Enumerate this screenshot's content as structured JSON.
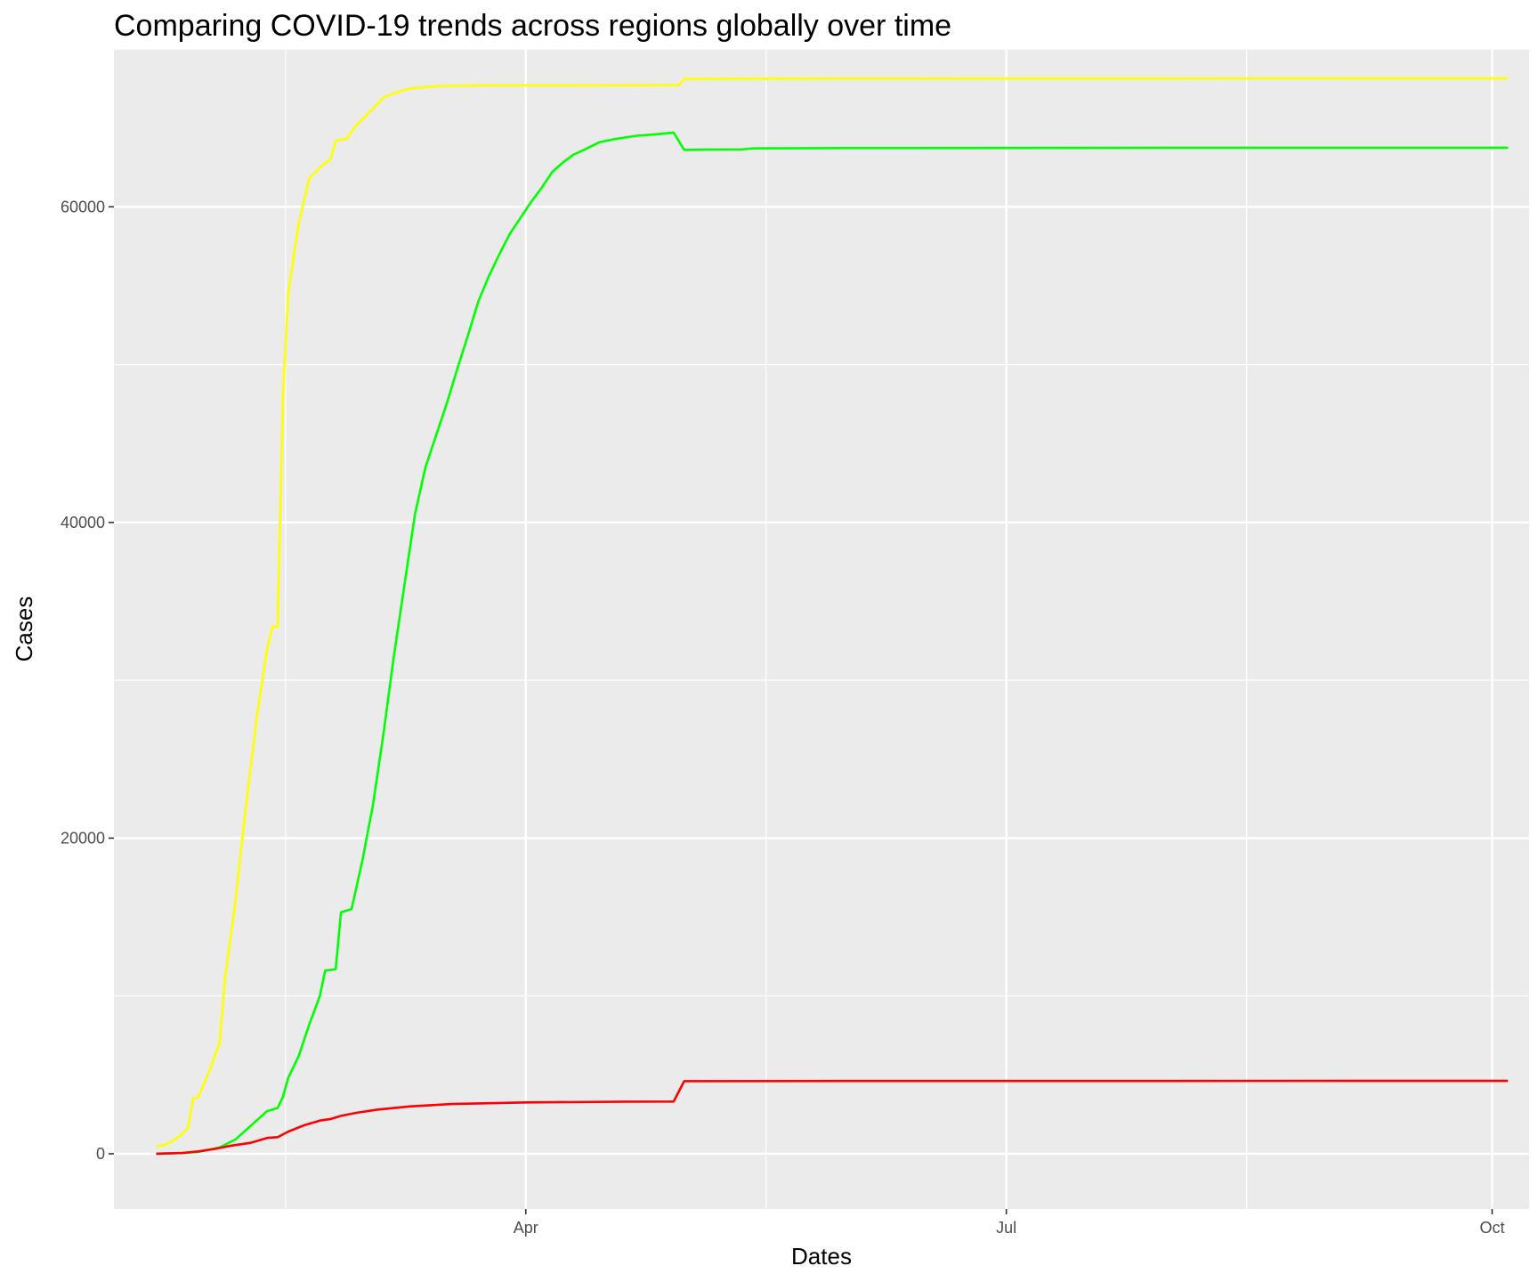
{
  "chart_data": {
    "type": "line",
    "title": "Comparing COVID-19 trends across regions globally over time",
    "xlabel": "Dates",
    "ylabel": "Cases",
    "x_axis_type": "date",
    "xlim": [
      "2020-01-14",
      "2020-10-08"
    ],
    "ylim": [
      -3500,
      70000
    ],
    "x_ticks": [
      {
        "date": "2020-04-01",
        "label": "Apr"
      },
      {
        "date": "2020-07-01",
        "label": "Jul"
      },
      {
        "date": "2020-10-01",
        "label": "Oct"
      }
    ],
    "y_ticks": [
      {
        "value": 0,
        "label": "0"
      },
      {
        "value": 20000,
        "label": "20000"
      },
      {
        "value": 40000,
        "label": "40000"
      },
      {
        "value": 60000,
        "label": "60000"
      }
    ],
    "grid": true,
    "legend": "none",
    "background": "#EBEBEB",
    "series": [
      {
        "color": "#FFFF00",
        "points": [
          [
            "2020-01-22",
            444
          ],
          [
            "2020-01-24",
            600
          ],
          [
            "2020-01-26",
            1000
          ],
          [
            "2020-01-28",
            1600
          ],
          [
            "2020-01-29",
            3500
          ],
          [
            "2020-01-30",
            3600
          ],
          [
            "2020-02-01",
            5200
          ],
          [
            "2020-02-03",
            7000
          ],
          [
            "2020-02-04",
            11000
          ],
          [
            "2020-02-06",
            16000
          ],
          [
            "2020-02-08",
            22000
          ],
          [
            "2020-02-10",
            27500
          ],
          [
            "2020-02-12",
            32000
          ],
          [
            "2020-02-13",
            33400
          ],
          [
            "2020-02-14",
            33400
          ],
          [
            "2020-02-15",
            48000
          ],
          [
            "2020-02-16",
            54500
          ],
          [
            "2020-02-18",
            59000
          ],
          [
            "2020-02-20",
            61800
          ],
          [
            "2020-02-22",
            62500
          ],
          [
            "2020-02-24",
            63000
          ],
          [
            "2020-02-25",
            64200
          ],
          [
            "2020-02-27",
            64300
          ],
          [
            "2020-02-29",
            65200
          ],
          [
            "2020-03-03",
            66200
          ],
          [
            "2020-03-05",
            66900
          ],
          [
            "2020-03-07",
            67200
          ],
          [
            "2020-03-10",
            67500
          ],
          [
            "2020-03-15",
            67650
          ],
          [
            "2020-03-25",
            67700
          ],
          [
            "2020-04-10",
            67700
          ],
          [
            "2020-04-30",
            67710
          ],
          [
            "2020-05-01",
            68100
          ],
          [
            "2020-06-01",
            68120
          ],
          [
            "2020-08-01",
            68130
          ],
          [
            "2020-10-04",
            68135
          ]
        ]
      },
      {
        "color": "#00FF00",
        "points": [
          [
            "2020-01-22",
            0
          ],
          [
            "2020-01-27",
            50
          ],
          [
            "2020-01-30",
            120
          ],
          [
            "2020-02-03",
            400
          ],
          [
            "2020-02-06",
            900
          ],
          [
            "2020-02-09",
            1800
          ],
          [
            "2020-02-12",
            2700
          ],
          [
            "2020-02-14",
            2900
          ],
          [
            "2020-02-15",
            3600
          ],
          [
            "2020-02-16",
            4800
          ],
          [
            "2020-02-18",
            6200
          ],
          [
            "2020-02-20",
            8200
          ],
          [
            "2020-02-22",
            10000
          ],
          [
            "2020-02-23",
            11600
          ],
          [
            "2020-02-25",
            11700
          ],
          [
            "2020-02-26",
            15300
          ],
          [
            "2020-02-28",
            15500
          ],
          [
            "2020-03-01",
            18500
          ],
          [
            "2020-03-03",
            22000
          ],
          [
            "2020-03-05",
            26500
          ],
          [
            "2020-03-07",
            31500
          ],
          [
            "2020-03-09",
            36000
          ],
          [
            "2020-03-11",
            40500
          ],
          [
            "2020-03-13",
            43500
          ],
          [
            "2020-03-15",
            45500
          ],
          [
            "2020-03-17",
            47500
          ],
          [
            "2020-03-19",
            49700
          ],
          [
            "2020-03-21",
            51800
          ],
          [
            "2020-03-23",
            54000
          ],
          [
            "2020-03-25",
            55600
          ],
          [
            "2020-03-27",
            57000
          ],
          [
            "2020-03-29",
            58300
          ],
          [
            "2020-03-31",
            59300
          ],
          [
            "2020-04-02",
            60300
          ],
          [
            "2020-04-04",
            61200
          ],
          [
            "2020-04-06",
            62200
          ],
          [
            "2020-04-08",
            62800
          ],
          [
            "2020-04-10",
            63300
          ],
          [
            "2020-04-12",
            63600
          ],
          [
            "2020-04-15",
            64100
          ],
          [
            "2020-04-18",
            64300
          ],
          [
            "2020-04-22",
            64500
          ],
          [
            "2020-04-26",
            64600
          ],
          [
            "2020-04-29",
            64700
          ],
          [
            "2020-05-01",
            63600
          ],
          [
            "2020-05-05",
            63620
          ],
          [
            "2020-05-12",
            63640
          ],
          [
            "2020-05-14",
            63700
          ],
          [
            "2020-06-01",
            63720
          ],
          [
            "2020-08-01",
            63740
          ],
          [
            "2020-10-04",
            63745
          ]
        ]
      },
      {
        "color": "#FF0000",
        "points": [
          [
            "2020-01-22",
            0
          ],
          [
            "2020-01-27",
            50
          ],
          [
            "2020-01-30",
            150
          ],
          [
            "2020-02-02",
            300
          ],
          [
            "2020-02-05",
            500
          ],
          [
            "2020-02-09",
            700
          ],
          [
            "2020-02-12",
            1000
          ],
          [
            "2020-02-14",
            1050
          ],
          [
            "2020-02-16",
            1400
          ],
          [
            "2020-02-19",
            1800
          ],
          [
            "2020-02-22",
            2100
          ],
          [
            "2020-02-24",
            2200
          ],
          [
            "2020-02-26",
            2400
          ],
          [
            "2020-02-29",
            2600
          ],
          [
            "2020-03-04",
            2800
          ],
          [
            "2020-03-10",
            3000
          ],
          [
            "2020-03-18",
            3150
          ],
          [
            "2020-04-01",
            3250
          ],
          [
            "2020-04-20",
            3300
          ],
          [
            "2020-04-29",
            3310
          ],
          [
            "2020-05-01",
            4600
          ],
          [
            "2020-06-01",
            4610
          ],
          [
            "2020-08-01",
            4615
          ],
          [
            "2020-10-04",
            4620
          ]
        ]
      }
    ]
  }
}
